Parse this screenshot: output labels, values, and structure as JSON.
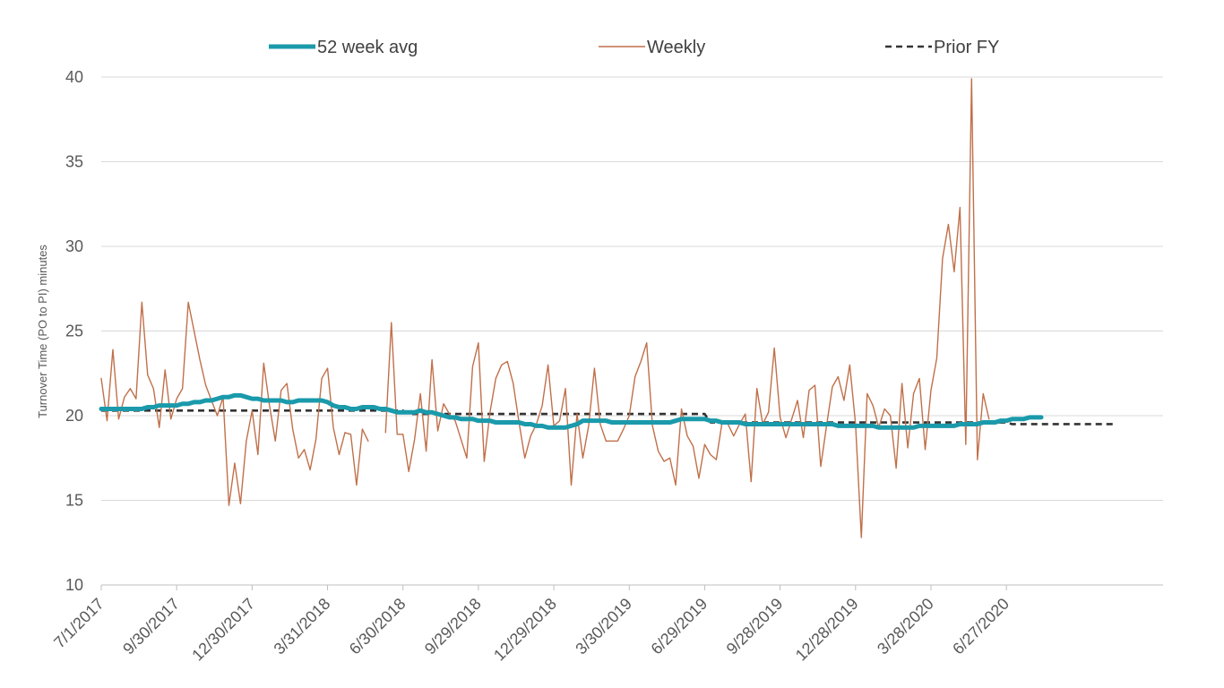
{
  "chart_data": {
    "type": "line",
    "title": "",
    "xlabel": "",
    "ylabel": "Turnover Time (PO to PI) minutes",
    "ylim": [
      10,
      40
    ],
    "yticks": [
      "10",
      "15",
      "20",
      "25",
      "30",
      "35",
      "40"
    ],
    "xticks": [
      "7/1/2017",
      "9/30/2017",
      "12/30/2017",
      "3/31/2018",
      "6/30/2018",
      "9/29/2018",
      "12/29/2018",
      "3/30/2019",
      "6/29/2019",
      "9/28/2019",
      "12/28/2019",
      "3/28/2020",
      "6/27/2020"
    ],
    "grid": "horizontal",
    "legend": "top",
    "series": [
      {
        "name": "52 week avg",
        "color": "#1a9aab",
        "values": [
          20.4,
          20.4,
          20.4,
          20.4,
          20.4,
          20.4,
          20.4,
          20.4,
          20.5,
          20.5,
          20.6,
          20.6,
          20.6,
          20.6,
          20.7,
          20.7,
          20.8,
          20.8,
          20.9,
          20.9,
          21.0,
          21.1,
          21.1,
          21.2,
          21.2,
          21.1,
          21.0,
          21.0,
          20.9,
          20.9,
          20.9,
          20.9,
          20.8,
          20.8,
          20.9,
          20.9,
          20.9,
          20.9,
          20.9,
          20.8,
          20.6,
          20.5,
          20.5,
          20.4,
          20.4,
          20.5,
          20.5,
          20.5,
          20.4,
          20.4,
          20.3,
          20.2,
          20.2,
          20.2,
          20.2,
          20.3,
          20.2,
          20.2,
          20.1,
          20.0,
          19.9,
          19.9,
          19.8,
          19.8,
          19.8,
          19.7,
          19.7,
          19.7,
          19.6,
          19.6,
          19.6,
          19.6,
          19.6,
          19.5,
          19.5,
          19.4,
          19.4,
          19.3,
          19.3,
          19.3,
          19.3,
          19.4,
          19.5,
          19.7,
          19.7,
          19.7,
          19.7,
          19.7,
          19.6,
          19.6,
          19.6,
          19.6,
          19.6,
          19.6,
          19.6,
          19.6,
          19.6,
          19.6,
          19.6,
          19.7,
          19.8,
          19.8,
          19.8,
          19.8,
          19.8,
          19.7,
          19.7,
          19.6,
          19.6,
          19.6,
          19.6,
          19.5,
          19.5,
          19.5,
          19.5,
          19.5,
          19.5,
          19.5,
          19.5,
          19.5,
          19.5,
          19.5,
          19.5,
          19.5,
          19.5,
          19.5,
          19.5,
          19.4,
          19.4,
          19.4,
          19.4,
          19.4,
          19.4,
          19.4,
          19.3,
          19.3,
          19.3,
          19.3,
          19.3,
          19.3,
          19.3,
          19.4,
          19.4,
          19.4,
          19.4,
          19.4,
          19.4,
          19.4,
          19.5,
          19.5,
          19.5,
          19.5,
          19.6,
          19.6,
          19.6,
          19.7,
          19.7,
          19.8,
          19.8,
          19.8,
          19.9,
          19.9,
          19.9
        ]
      },
      {
        "name": "Weekly",
        "color": "#c0704a",
        "values": [
          22.2,
          19.7,
          23.9,
          19.8,
          21.1,
          21.6,
          21.0,
          26.7,
          22.4,
          21.6,
          19.3,
          22.7,
          19.8,
          21.0,
          21.6,
          26.7,
          25.0,
          23.3,
          21.8,
          20.9,
          20.0,
          21.1,
          14.7,
          17.2,
          14.8,
          18.5,
          20.3,
          17.7,
          23.1,
          20.6,
          18.5,
          21.5,
          21.9,
          19.2,
          17.5,
          18.0,
          16.8,
          18.6,
          22.2,
          22.8,
          19.3,
          17.7,
          19.0,
          18.9,
          15.9,
          19.2,
          18.5,
          null,
          null,
          19.0,
          25.5,
          18.9,
          18.9,
          16.7,
          18.6,
          21.3,
          17.9,
          23.3,
          19.1,
          20.7,
          20.1,
          19.7,
          18.6,
          17.5,
          22.9,
          24.3,
          17.3,
          20.2,
          22.2,
          23.0,
          23.2,
          21.9,
          19.6,
          17.5,
          18.8,
          19.5,
          20.6,
          23.0,
          19.4,
          19.7,
          21.6,
          15.9,
          20.1,
          17.5,
          19.4,
          22.8,
          19.5,
          18.5,
          18.5,
          18.5,
          19.2,
          20.0,
          22.3,
          23.2,
          24.3,
          19.4,
          17.9,
          17.3,
          17.5,
          15.9,
          20.4,
          18.8,
          18.2,
          16.3,
          18.3,
          17.7,
          17.4,
          19.6,
          19.5,
          18.8,
          19.5,
          20.1,
          16.1,
          21.6,
          19.5,
          20.2,
          24.0,
          19.9,
          18.7,
          19.8,
          20.9,
          18.7,
          21.5,
          21.8,
          17.0,
          19.4,
          21.7,
          22.3,
          20.9,
          23.0,
          19.5,
          12.8,
          21.3,
          20.6,
          19.3,
          20.4,
          20.0,
          16.9,
          21.9,
          18.1,
          21.3,
          22.2,
          18.0,
          21.5,
          23.4,
          29.3,
          31.3,
          28.5,
          32.3,
          18.3,
          39.9,
          17.4,
          21.3,
          19.8
        ]
      },
      {
        "name": "Prior FY",
        "color": "#333333",
        "values": [
          20.3,
          20.3,
          20.3,
          20.3,
          20.3,
          20.3,
          20.3,
          20.3,
          20.3,
          20.3,
          20.3,
          20.3,
          20.3,
          20.3,
          20.3,
          20.3,
          20.3,
          20.3,
          20.3,
          20.3,
          20.3,
          20.3,
          20.3,
          20.3,
          20.3,
          20.3,
          20.3,
          20.3,
          20.3,
          20.3,
          20.3,
          20.3,
          20.3,
          20.3,
          20.3,
          20.3,
          20.3,
          20.3,
          20.3,
          20.3,
          20.3,
          20.3,
          20.3,
          20.3,
          20.3,
          20.3,
          20.3,
          20.3,
          20.3,
          20.3,
          20.3,
          20.3,
          20.3,
          20.1,
          20.1,
          20.1,
          20.1,
          20.1,
          20.1,
          20.1,
          20.1,
          20.1,
          20.1,
          20.1,
          20.1,
          20.1,
          20.1,
          20.1,
          20.1,
          20.1,
          20.1,
          20.1,
          20.1,
          20.1,
          20.1,
          20.1,
          20.1,
          20.1,
          20.1,
          20.1,
          20.1,
          20.1,
          20.1,
          20.1,
          20.1,
          20.1,
          20.1,
          20.1,
          20.1,
          20.1,
          20.1,
          20.1,
          20.1,
          20.1,
          20.1,
          20.1,
          20.1,
          20.1,
          20.1,
          20.1,
          20.1,
          20.1,
          20.1,
          20.1,
          20.1,
          19.6,
          19.6,
          19.6,
          19.6,
          19.6,
          19.6,
          19.6,
          19.6,
          19.6,
          19.6,
          19.6,
          19.6,
          19.6,
          19.6,
          19.6,
          19.6,
          19.6,
          19.6,
          19.6,
          19.6,
          19.6,
          19.6,
          19.6,
          19.6,
          19.6,
          19.6,
          19.6,
          19.6,
          19.6,
          19.6,
          19.6,
          19.6,
          19.6,
          19.6,
          19.6,
          19.6,
          19.6,
          19.6,
          19.6,
          19.6,
          19.6,
          19.6,
          19.6,
          19.6,
          19.6,
          19.6,
          19.6,
          19.6,
          19.6,
          19.6,
          19.6,
          19.6,
          19.5,
          19.5,
          19.5,
          19.5,
          19.5,
          19.5,
          19.5,
          19.5,
          19.5,
          19.5,
          19.5,
          19.5,
          19.5,
          19.5,
          19.5,
          19.5,
          19.5,
          19.5,
          19.5
        ]
      }
    ]
  }
}
